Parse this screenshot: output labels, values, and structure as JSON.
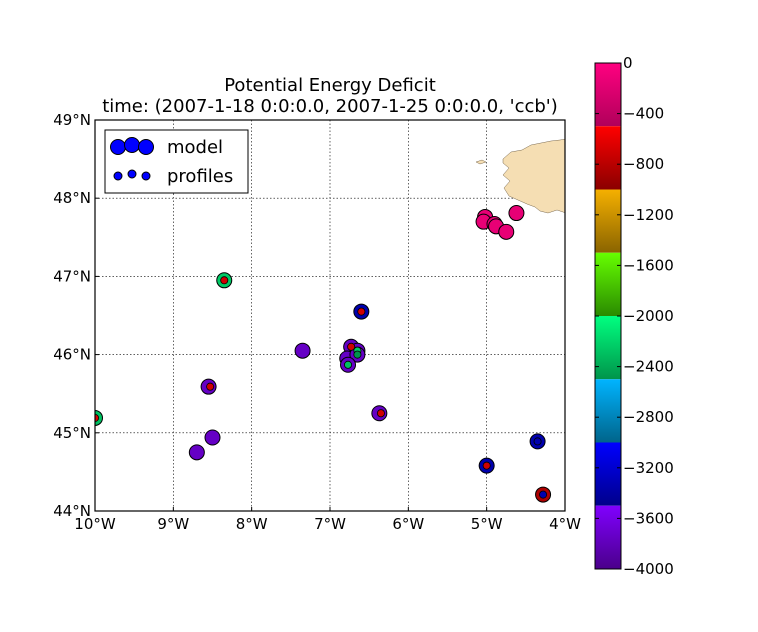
{
  "chart_data": {
    "type": "scatter",
    "title": "Potential Energy Deficit",
    "subtitle": "time: (2007-1-18 0:0:0.0, 2007-1-25 0:0:0.0, 'ccb')",
    "xlabel": "",
    "ylabel": "",
    "xlim": [
      -10,
      -4
    ],
    "ylim": [
      44,
      49
    ],
    "x_ticks": [
      {
        "value": -10,
        "label": "10°W"
      },
      {
        "value": -9,
        "label": "9°W"
      },
      {
        "value": -8,
        "label": "8°W"
      },
      {
        "value": -7,
        "label": "7°W"
      },
      {
        "value": -6,
        "label": "6°W"
      },
      {
        "value": -5,
        "label": "5°W"
      },
      {
        "value": -4,
        "label": "4°W"
      }
    ],
    "y_ticks": [
      {
        "value": 44,
        "label": "44°N"
      },
      {
        "value": 45,
        "label": "45°N"
      },
      {
        "value": 46,
        "label": "46°N"
      },
      {
        "value": 47,
        "label": "47°N"
      },
      {
        "value": 48,
        "label": "48°N"
      },
      {
        "value": 49,
        "label": "49°N"
      }
    ],
    "grid": true,
    "legend_placement": "top-left",
    "series": [
      {
        "name": "model",
        "marker_size": "large",
        "points": [
          {
            "lon": -10.0,
            "lat": 45.19,
            "value": -2300
          },
          {
            "lon": -8.35,
            "lat": 46.95,
            "value": -2250
          },
          {
            "lon": -8.55,
            "lat": 45.59,
            "value": -3750
          },
          {
            "lon": -8.5,
            "lat": 44.94,
            "value": -3750
          },
          {
            "lon": -8.7,
            "lat": 44.75,
            "value": -3750
          },
          {
            "lon": -7.35,
            "lat": 46.05,
            "value": -3750
          },
          {
            "lon": -6.6,
            "lat": 46.55,
            "value": -3350
          },
          {
            "lon": -6.73,
            "lat": 46.1,
            "value": -3750
          },
          {
            "lon": -6.65,
            "lat": 46.05,
            "value": -3750
          },
          {
            "lon": -6.78,
            "lat": 45.95,
            "value": -3750
          },
          {
            "lon": -6.65,
            "lat": 46.0,
            "value": -3750
          },
          {
            "lon": -6.77,
            "lat": 45.87,
            "value": -3750
          },
          {
            "lon": -6.37,
            "lat": 45.25,
            "value": -3750
          },
          {
            "lon": -5.0,
            "lat": 44.58,
            "value": -3350
          },
          {
            "lon": -4.35,
            "lat": 44.89,
            "value": -3350
          },
          {
            "lon": -4.28,
            "lat": 44.21,
            "value": -850
          },
          {
            "lon": -5.02,
            "lat": 47.76,
            "value": -150
          },
          {
            "lon": -5.04,
            "lat": 47.7,
            "value": -150
          },
          {
            "lon": -4.9,
            "lat": 47.67,
            "value": -150
          },
          {
            "lon": -4.88,
            "lat": 47.64,
            "value": -150
          },
          {
            "lon": -4.75,
            "lat": 47.57,
            "value": -150
          },
          {
            "lon": -4.62,
            "lat": 47.81,
            "value": -150
          }
        ]
      },
      {
        "name": "profiles",
        "marker_size": "small",
        "points": [
          {
            "lon": -10.0,
            "lat": 45.19,
            "value": -650
          },
          {
            "lon": -8.35,
            "lat": 46.95,
            "value": -700
          },
          {
            "lon": -8.53,
            "lat": 45.59,
            "value": -700
          },
          {
            "lon": -6.6,
            "lat": 46.55,
            "value": -700
          },
          {
            "lon": -6.73,
            "lat": 46.1,
            "value": -700
          },
          {
            "lon": -6.65,
            "lat": 46.05,
            "value": -2250
          },
          {
            "lon": -6.65,
            "lat": 46.0,
            "value": -2500
          },
          {
            "lon": -6.77,
            "lat": 45.87,
            "value": -2300
          },
          {
            "lon": -6.35,
            "lat": 45.25,
            "value": -700
          },
          {
            "lon": -5.0,
            "lat": 44.58,
            "value": -700
          },
          {
            "lon": -4.35,
            "lat": 44.89,
            "value": -3350
          },
          {
            "lon": -4.28,
            "lat": 44.21,
            "value": -3350
          }
        ]
      }
    ],
    "colorbar": {
      "min": -4000,
      "max": 0,
      "ticks": [
        {
          "value": 0,
          "label": "0"
        },
        {
          "value": -400,
          "label": "−400"
        },
        {
          "value": -800,
          "label": "−800"
        },
        {
          "value": -1200,
          "label": "−1200"
        },
        {
          "value": -1600,
          "label": "−1600"
        },
        {
          "value": -2000,
          "label": "−2000"
        },
        {
          "value": -2400,
          "label": "−2400"
        },
        {
          "value": -2800,
          "label": "−2800"
        },
        {
          "value": -3200,
          "label": "−3200"
        },
        {
          "value": -3600,
          "label": "−3600"
        },
        {
          "value": -4000,
          "label": "−4000"
        }
      ],
      "bands": [
        {
          "from": -500,
          "to": 0,
          "top": "#ff0080",
          "bottom": "#b0005a"
        },
        {
          "from": -1000,
          "to": -500,
          "top": "#ff0000",
          "bottom": "#8a0000"
        },
        {
          "from": -1500,
          "to": -1000,
          "top": "#f5b000",
          "bottom": "#8a6400"
        },
        {
          "from": -2000,
          "to": -1500,
          "top": "#66ff00",
          "bottom": "#2a8a00"
        },
        {
          "from": -2500,
          "to": -2000,
          "top": "#00ff80",
          "bottom": "#00944a"
        },
        {
          "from": -3000,
          "to": -2500,
          "top": "#00b4ff",
          "bottom": "#00648a"
        },
        {
          "from": -3500,
          "to": -3000,
          "top": "#0000ff",
          "bottom": "#00008a"
        },
        {
          "from": -4000,
          "to": -3500,
          "top": "#8000ff",
          "bottom": "#4a008a"
        }
      ]
    },
    "land_color": "#f5deb3"
  }
}
